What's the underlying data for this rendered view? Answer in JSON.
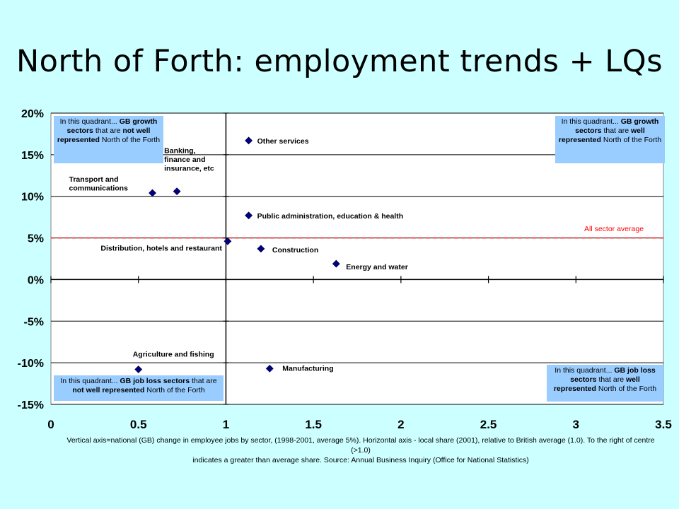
{
  "slide": {
    "title": "North of Forth: employment trends + LQs"
  },
  "chart_data": {
    "type": "scatter",
    "xlim": [
      0,
      3.5
    ],
    "ylim": [
      -15,
      20
    ],
    "x_ticks": [
      "0",
      "0.5",
      "1",
      "1.5",
      "2",
      "2.5",
      "3",
      "3.5"
    ],
    "y_ticks": [
      "20%",
      "15%",
      "10%",
      "5%",
      "0%",
      "-5%",
      "-10%",
      "-15%"
    ],
    "grid": "horizontal",
    "points": [
      {
        "label": "Other services",
        "x": 1.13,
        "y": 16.7
      },
      {
        "label": "Banking, finance and insurance, etc",
        "x": 0.72,
        "y": 10.6
      },
      {
        "label": "Transport and communications",
        "x": 0.58,
        "y": 10.4
      },
      {
        "label": "Public administration, education & health",
        "x": 1.13,
        "y": 7.7
      },
      {
        "label": "Distribution, hotels and restaurant",
        "x": 1.01,
        "y": 4.6
      },
      {
        "label": "Construction",
        "x": 1.2,
        "y": 3.7
      },
      {
        "label": "Energy and water",
        "x": 1.63,
        "y": 1.9
      },
      {
        "label": "Agriculture and fishing",
        "x": 0.5,
        "y": -10.8
      },
      {
        "label": "Manufacturing",
        "x": 1.25,
        "y": -10.7
      }
    ],
    "average_line": {
      "label": "All sector average",
      "y": 5,
      "color": "#ff0000"
    },
    "point_color": "#000080"
  },
  "quadrants": {
    "top_left": {
      "lines": [
        "In this quadrant... ",
        "GB growth",
        "sectors",
        " that are ",
        "not well",
        "represented",
        " North of the Forth"
      ]
    },
    "top_right": {
      "lines": [
        "In this quadrant... ",
        "GB growth",
        "sectors",
        " that are ",
        "well",
        "represented",
        " North of the Forth"
      ]
    },
    "bottom_left": {
      "lines": [
        "In this quadrant... ",
        "GB job loss sectors",
        " that are ",
        "not well represented",
        " North of the Forth"
      ]
    },
    "bottom_right": {
      "lines": [
        "In this quadrant... ",
        "GB job loss",
        "sectors",
        " that are ",
        "well",
        "represented",
        " North of the Forth"
      ]
    }
  },
  "footnote": {
    "line1": "Vertical axis=national (GB) change in employee jobs by sector, (1998-2001, average 5%). Horizontal axis - local share (2001), relative to British average (1.0). To the right of centre (>1.0)",
    "line2": "indicates a greater than average share. Source: Annual Business Inquiry (Office for National Statistics)"
  }
}
